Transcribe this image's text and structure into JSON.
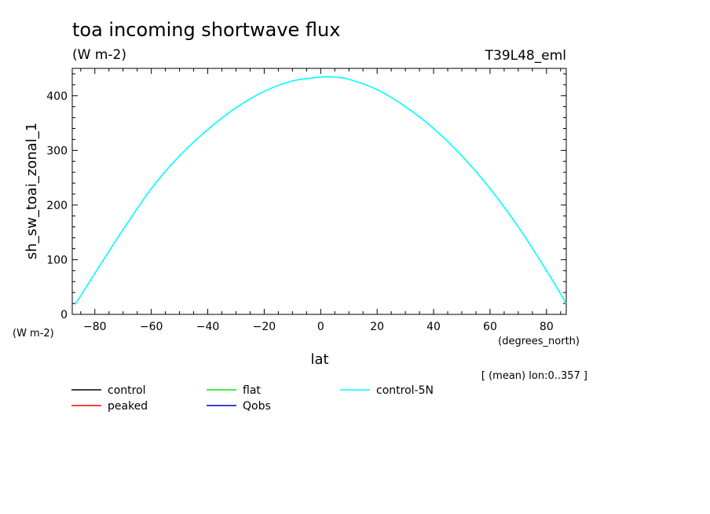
{
  "chart_data": {
    "type": "line",
    "title": "toa incoming shortwave flux",
    "units": "(W m-2)",
    "model_label": "T39L48_eml",
    "xlabel": "lat",
    "x_units": "(degrees_north)",
    "ylabel": "sh_sw_toai_zonal_1",
    "y_units": "(W m-2)",
    "averaging_note": "[ (mean) lon:0..357 ]",
    "xlim": [
      -88,
      87
    ],
    "ylim": [
      0,
      450
    ],
    "x_ticks": [
      -80,
      -60,
      -40,
      -20,
      0,
      20,
      40,
      60,
      80
    ],
    "y_ticks": [
      0,
      100,
      200,
      300,
      400
    ],
    "legend": [
      {
        "name": "control",
        "color": "#000000"
      },
      {
        "name": "flat",
        "color": "#00ee00"
      },
      {
        "name": "control-5N",
        "color": "#00ffff"
      },
      {
        "name": "peaked",
        "color": "#ff0000"
      },
      {
        "name": "Qobs",
        "color": "#0000cc"
      }
    ],
    "series": [
      {
        "name": "control-5N",
        "color": "#00ffff",
        "x": [
          -87,
          -80,
          -70,
          -60,
          -50,
          -40,
          -30,
          -20,
          -10,
          0,
          5,
          10,
          20,
          30,
          40,
          50,
          60,
          70,
          80,
          87
        ],
        "y": [
          18,
          75,
          155,
          230,
          290,
          338,
          378,
          408,
          427,
          434,
          434,
          430,
          411,
          380,
          340,
          290,
          230,
          160,
          80,
          20
        ]
      }
    ]
  }
}
